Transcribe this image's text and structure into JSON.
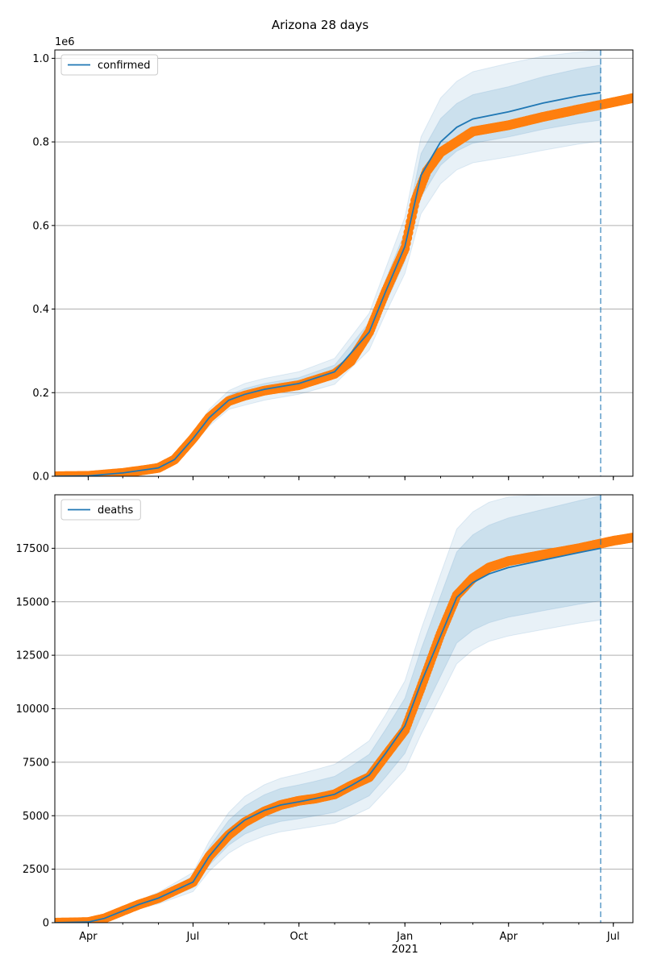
{
  "chart_data": {
    "type": "line",
    "title": "Arizona 28 days",
    "x_tick_labels": [
      {
        "date": "2020-04-01",
        "label": "Apr"
      },
      {
        "date": "2020-07-01",
        "label": "Jul"
      },
      {
        "date": "2020-10-01",
        "label": "Oct"
      },
      {
        "date": "2021-01-01",
        "label": "Jan"
      },
      {
        "date": "2021-04-01",
        "label": "Apr"
      },
      {
        "date": "2021-07-01",
        "label": "Jul"
      }
    ],
    "x_year_label": "2021",
    "xlim": [
      "2020-03-03",
      "2021-07-18"
    ],
    "forecast_date": "2021-06-20",
    "colors": {
      "model": "#1f77b4",
      "observed": "#ff7f0e",
      "band": "#1f77b4",
      "grid": "#b0b0b0"
    },
    "panels": [
      {
        "name": "confirmed",
        "legend": "confirmed",
        "ylim": [
          0,
          1020000
        ],
        "y_ticks": [
          0,
          200000,
          400000,
          600000,
          800000,
          1000000
        ],
        "y_tick_labels": [
          "0.0",
          "0.2",
          "0.4",
          "0.6",
          "0.8",
          "1.0"
        ],
        "offset_label": "1e6",
        "observed": {
          "x": [
            "2020-03-03",
            "2020-04-01",
            "2020-05-01",
            "2020-05-20",
            "2020-06-01",
            "2020-06-15",
            "2020-07-01",
            "2020-07-15",
            "2020-08-01",
            "2020-08-15",
            "2020-09-01",
            "2020-10-01",
            "2020-11-01",
            "2020-11-15",
            "2020-12-01",
            "2020-12-15",
            "2021-01-01",
            "2021-01-10",
            "2021-01-20",
            "2021-02-01",
            "2021-02-15",
            "2021-03-01",
            "2021-04-01",
            "2021-05-01",
            "2021-06-01",
            "2021-07-01",
            "2021-07-18"
          ],
          "y": [
            0,
            1000,
            8000,
            15000,
            20000,
            40000,
            90000,
            140000,
            180000,
            193000,
            205000,
            218000,
            245000,
            275000,
            345000,
            440000,
            545000,
            660000,
            730000,
            775000,
            800000,
            825000,
            840000,
            860000,
            878000,
            895000,
            905000
          ]
        },
        "model": {
          "x": [
            "2020-03-03",
            "2020-04-01",
            "2020-05-01",
            "2020-06-01",
            "2020-06-15",
            "2020-07-01",
            "2020-07-15",
            "2020-08-01",
            "2020-08-15",
            "2020-09-01",
            "2020-10-01",
            "2020-11-01",
            "2020-12-01",
            "2020-12-15",
            "2021-01-01",
            "2021-01-15",
            "2021-02-01",
            "2021-02-15",
            "2021-03-01",
            "2021-04-01",
            "2021-05-01",
            "2021-06-01",
            "2021-06-20"
          ],
          "y": [
            0,
            1000,
            8000,
            20000,
            40000,
            90000,
            140000,
            182000,
            196000,
            208000,
            222000,
            250000,
            345000,
            440000,
            550000,
            720000,
            800000,
            835000,
            855000,
            872000,
            893000,
            910000,
            918000
          ]
        },
        "bands": {
          "inner_lower": [
            0,
            800,
            7000,
            18000,
            36000,
            83000,
            130000,
            170000,
            182000,
            194000,
            208000,
            234000,
            322000,
            412000,
            515000,
            668000,
            744000,
            778000,
            797000,
            812000,
            830000,
            845000,
            852000
          ],
          "inner_upper": [
            0,
            1200,
            9000,
            22000,
            44000,
            97000,
            150000,
            194000,
            210000,
            222000,
            236000,
            266000,
            368000,
            468000,
            585000,
            772000,
            856000,
            892000,
            913000,
            932000,
            956000,
            975000,
            984000
          ],
          "outer_lower": [
            0,
            600,
            6000,
            16000,
            32000,
            76000,
            120000,
            160000,
            170000,
            182000,
            196000,
            220000,
            302000,
            388000,
            485000,
            628000,
            700000,
            733000,
            750000,
            764000,
            780000,
            795000,
            802000
          ],
          "outer_upper": [
            0,
            1400,
            10000,
            24000,
            48000,
            104000,
            160000,
            205000,
            222000,
            234000,
            250000,
            282000,
            390000,
            495000,
            620000,
            812000,
            905000,
            945000,
            968000,
            988000,
            1005000,
            1015000,
            1020000
          ]
        }
      },
      {
        "name": "deaths",
        "legend": "deaths",
        "ylim": [
          0,
          20000
        ],
        "y_ticks": [
          0,
          2500,
          5000,
          7500,
          10000,
          12500,
          15000,
          17500
        ],
        "y_tick_labels": [
          "0",
          "2500",
          "5000",
          "7500",
          "10000",
          "12500",
          "15000",
          "17500"
        ],
        "offset_label": "",
        "observed": {
          "x": [
            "2020-03-03",
            "2020-04-01",
            "2020-04-15",
            "2020-05-01",
            "2020-05-15",
            "2020-06-01",
            "2020-06-15",
            "2020-07-01",
            "2020-07-15",
            "2020-08-01",
            "2020-08-15",
            "2020-09-01",
            "2020-09-15",
            "2020-10-01",
            "2020-10-15",
            "2020-11-01",
            "2020-11-15",
            "2020-12-01",
            "2020-12-15",
            "2021-01-01",
            "2021-01-15",
            "2021-02-01",
            "2021-02-15",
            "2021-03-01",
            "2021-03-15",
            "2021-04-01",
            "2021-05-01",
            "2021-06-01",
            "2021-07-01",
            "2021-07-18"
          ],
          "y": [
            0,
            30,
            200,
            550,
            850,
            1150,
            1500,
            1900,
            3100,
            4100,
            4700,
            5200,
            5500,
            5700,
            5800,
            6000,
            6400,
            6800,
            7800,
            9000,
            11000,
            13500,
            15300,
            16100,
            16600,
            16900,
            17200,
            17500,
            17850,
            18000
          ]
        },
        "model": {
          "x": [
            "2020-03-03",
            "2020-04-01",
            "2020-04-15",
            "2020-05-01",
            "2020-05-15",
            "2020-06-01",
            "2020-06-15",
            "2020-07-01",
            "2020-07-15",
            "2020-08-01",
            "2020-08-15",
            "2020-09-01",
            "2020-09-15",
            "2020-10-01",
            "2020-10-15",
            "2020-11-01",
            "2020-11-15",
            "2020-12-01",
            "2020-12-15",
            "2021-01-01",
            "2021-01-15",
            "2021-02-01",
            "2021-02-15",
            "2021-03-01",
            "2021-03-15",
            "2021-04-01",
            "2021-05-01",
            "2021-06-01",
            "2021-06-20"
          ],
          "y": [
            0,
            30,
            200,
            550,
            850,
            1150,
            1500,
            1900,
            3100,
            4200,
            4800,
            5250,
            5500,
            5650,
            5800,
            6000,
            6400,
            6900,
            7900,
            9200,
            11200,
            13400,
            15200,
            15900,
            16300,
            16600,
            16950,
            17300,
            17500
          ]
        },
        "bands": {
          "inner_lower": [
            0,
            25,
            170,
            470,
            730,
            990,
            1290,
            1630,
            2680,
            3620,
            4140,
            4520,
            4730,
            4860,
            4990,
            5160,
            5500,
            5930,
            6790,
            7910,
            9630,
            11520,
            13070,
            13670,
            14020,
            14280,
            14580,
            14880,
            15050
          ],
          "inner_upper": [
            0,
            35,
            230,
            630,
            970,
            1310,
            1710,
            2170,
            3520,
            4780,
            5460,
            5980,
            6270,
            6440,
            6610,
            6840,
            7300,
            7870,
            9010,
            10490,
            12770,
            15280,
            17330,
            18130,
            18580,
            18920,
            19320,
            19720,
            19950
          ],
          "outer_lower": [
            0,
            22,
            150,
            420,
            650,
            880,
            1150,
            1450,
            2400,
            3250,
            3700,
            4050,
            4250,
            4380,
            4500,
            4650,
            4950,
            5350,
            6150,
            7150,
            8800,
            10600,
            12100,
            12750,
            13150,
            13400,
            13700,
            14000,
            14150
          ],
          "outer_upper": [
            0,
            38,
            250,
            680,
            1050,
            1420,
            1850,
            2350,
            3800,
            5150,
            5900,
            6450,
            6750,
            6950,
            7150,
            7400,
            7900,
            8500,
            9700,
            11300,
            13700,
            16300,
            18400,
            19200,
            19650,
            19900,
            20000,
            20000,
            20000
          ]
        }
      }
    ]
  }
}
